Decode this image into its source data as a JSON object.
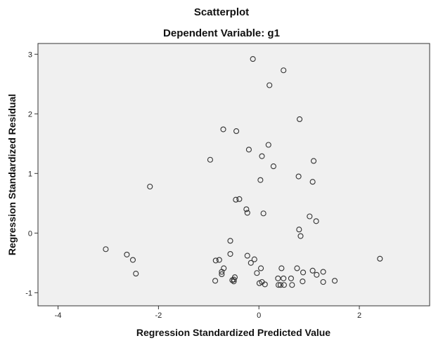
{
  "chart_data": {
    "type": "scatter",
    "title": "Scatterplot",
    "subtitle": "Dependent Variable: g1",
    "xlabel": "Regression Standardized Predicted Value",
    "ylabel": "Regression Standardized Residual",
    "xlim": [
      -4.4,
      3.4
    ],
    "ylim": [
      -1.22,
      3.18
    ],
    "xticks": [
      -4,
      -2,
      0,
      2
    ],
    "yticks": [
      -1,
      0,
      1,
      2,
      3
    ],
    "grid": false,
    "legend": "none",
    "colors": {
      "plot_background": "#f0f0f0",
      "marker_stroke": "#333333",
      "frame": "#333333"
    },
    "points": [
      [
        -0.12,
        2.92
      ],
      [
        0.49,
        2.73
      ],
      [
        0.21,
        2.48
      ],
      [
        0.81,
        1.91
      ],
      [
        -0.71,
        1.74
      ],
      [
        -0.45,
        1.71
      ],
      [
        0.19,
        1.48
      ],
      [
        -0.2,
        1.4
      ],
      [
        0.06,
        1.29
      ],
      [
        -0.97,
        1.23
      ],
      [
        1.09,
        1.21
      ],
      [
        0.29,
        1.12
      ],
      [
        0.79,
        0.95
      ],
      [
        0.03,
        0.89
      ],
      [
        1.07,
        0.86
      ],
      [
        -2.17,
        0.78
      ],
      [
        -0.39,
        0.57
      ],
      [
        -0.46,
        0.56
      ],
      [
        -0.25,
        0.4
      ],
      [
        -0.23,
        0.34
      ],
      [
        0.09,
        0.33
      ],
      [
        1.01,
        0.28
      ],
      [
        1.14,
        0.2
      ],
      [
        0.8,
        0.06
      ],
      [
        0.83,
        -0.05
      ],
      [
        -0.57,
        -0.13
      ],
      [
        -3.05,
        -0.27
      ],
      [
        -2.63,
        -0.36
      ],
      [
        -0.57,
        -0.35
      ],
      [
        -0.23,
        -0.38
      ],
      [
        2.41,
        -0.43
      ],
      [
        -2.51,
        -0.45
      ],
      [
        -0.09,
        -0.44
      ],
      [
        -0.79,
        -0.45
      ],
      [
        -0.86,
        -0.46
      ],
      [
        -0.16,
        -0.5
      ],
      [
        -0.7,
        -0.59
      ],
      [
        0.04,
        -0.59
      ],
      [
        0.45,
        -0.59
      ],
      [
        0.76,
        -0.59
      ],
      [
        1.07,
        -0.63
      ],
      [
        -0.74,
        -0.65
      ],
      [
        1.28,
        -0.65
      ],
      [
        0.88,
        -0.66
      ],
      [
        -0.04,
        -0.67
      ],
      [
        -2.45,
        -0.68
      ],
      [
        -0.74,
        -0.69
      ],
      [
        1.15,
        -0.7
      ],
      [
        -0.48,
        -0.74
      ],
      [
        0.38,
        -0.76
      ],
      [
        0.49,
        -0.76
      ],
      [
        0.64,
        -0.76
      ],
      [
        -0.5,
        -0.78
      ],
      [
        -0.53,
        -0.79
      ],
      [
        -0.87,
        -0.8
      ],
      [
        1.51,
        -0.8
      ],
      [
        -0.5,
        -0.81
      ],
      [
        0.87,
        -0.81
      ],
      [
        0.06,
        -0.82
      ],
      [
        1.28,
        -0.82
      ],
      [
        0.01,
        -0.84
      ],
      [
        0.12,
        -0.86
      ],
      [
        0.39,
        -0.87
      ],
      [
        0.5,
        -0.87
      ],
      [
        0.66,
        -0.87
      ],
      [
        0.43,
        -0.87
      ]
    ]
  }
}
